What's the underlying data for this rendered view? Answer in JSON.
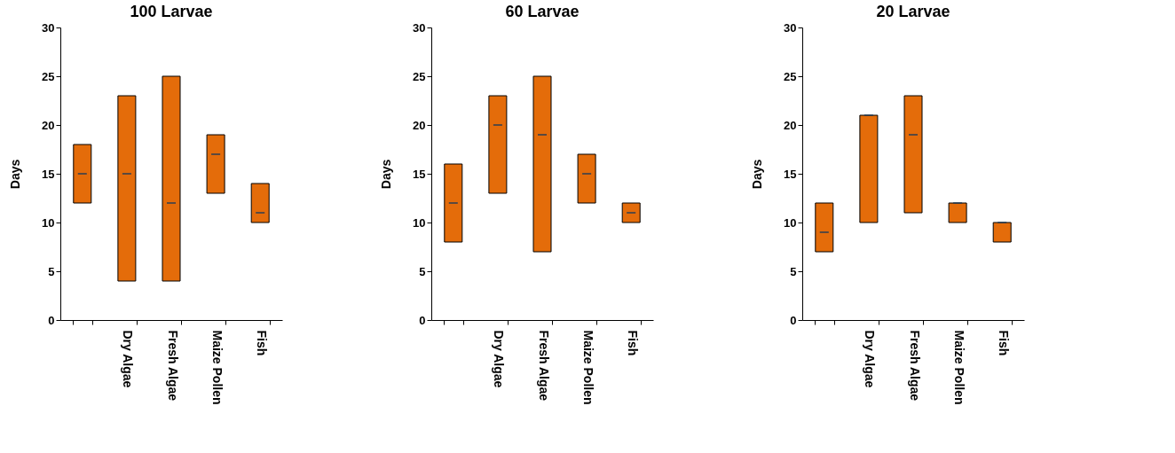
{
  "chart_data": [
    {
      "type": "box",
      "title": "100 Larvae",
      "ylabel": "Days",
      "categories": [
        null,
        "Dry Algae",
        "Fresh Algae",
        "Maize Pollen",
        "Fish"
      ],
      "ylim": [
        0,
        30
      ],
      "yticks": [
        0,
        5,
        10,
        15,
        20,
        25,
        30
      ],
      "grid": false,
      "color": "#e46c0a",
      "boxes": [
        {
          "low": 12,
          "q1": 12,
          "median": 15,
          "q3": 18,
          "high": 18
        },
        {
          "low": 4,
          "q1": 4,
          "median": 15,
          "q3": 23,
          "high": 23
        },
        {
          "low": 4,
          "q1": 4,
          "median": 12,
          "q3": 25,
          "high": 25
        },
        {
          "low": 13,
          "q1": 13,
          "median": 17,
          "q3": 19,
          "high": 19
        },
        {
          "low": 10,
          "q1": 10,
          "median": 11,
          "q3": 14,
          "high": 14
        }
      ]
    },
    {
      "type": "box",
      "title": "60 Larvae",
      "ylabel": "Days",
      "categories": [
        null,
        "Dry Algae",
        "Fresh Algae",
        "Maize Pollen",
        "Fish"
      ],
      "ylim": [
        0,
        30
      ],
      "yticks": [
        0,
        5,
        10,
        15,
        20,
        25,
        30
      ],
      "grid": false,
      "color": "#e46c0a",
      "boxes": [
        {
          "low": 8,
          "q1": 8,
          "median": 12,
          "q3": 16,
          "high": 16
        },
        {
          "low": 13,
          "q1": 13,
          "median": 20,
          "q3": 23,
          "high": 23
        },
        {
          "low": 7,
          "q1": 7,
          "median": 19,
          "q3": 25,
          "high": 25
        },
        {
          "low": 12,
          "q1": 12,
          "median": 15,
          "q3": 17,
          "high": 17
        },
        {
          "low": 10,
          "q1": 10,
          "median": 11,
          "q3": 12,
          "high": 12
        }
      ]
    },
    {
      "type": "box",
      "title": "20 Larvae",
      "ylabel": "Days",
      "categories": [
        null,
        "Dry Algae",
        "Fresh Algae",
        "Maize Pollen",
        "Fish"
      ],
      "ylim": [
        0,
        30
      ],
      "yticks": [
        0,
        5,
        10,
        15,
        20,
        25,
        30
      ],
      "grid": false,
      "color": "#e46c0a",
      "boxes": [
        {
          "low": 7,
          "q1": 7,
          "median": 9,
          "q3": 12,
          "high": 12
        },
        {
          "low": 10,
          "q1": 10,
          "median": 21,
          "q3": 21,
          "high": 21
        },
        {
          "low": 11,
          "q1": 11,
          "median": 19,
          "q3": 23,
          "high": 23
        },
        {
          "low": 10,
          "q1": 10,
          "median": 12,
          "q3": 12,
          "high": 12
        },
        {
          "low": 8,
          "q1": 8,
          "median": 10,
          "q3": 10,
          "high": 10
        }
      ]
    }
  ]
}
